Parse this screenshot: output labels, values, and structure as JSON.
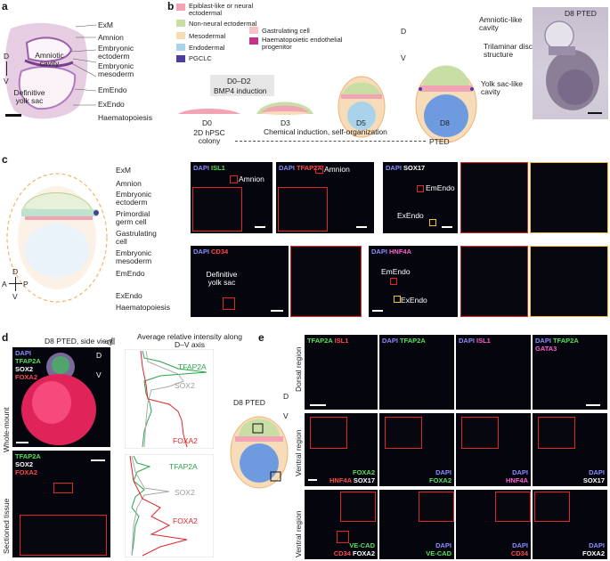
{
  "panels": {
    "a": "a",
    "b": "b",
    "c": "c",
    "d": "d",
    "e": "e"
  },
  "panel_a": {
    "labels": [
      "ExM",
      "Amnion",
      "Embryonic ectoderm",
      "Embryonic mesoderm",
      "EmEndo",
      "ExEndo",
      "Haematopoiesis"
    ],
    "amniotic": "Amniotic cavity",
    "yolk": "Definitive yolk sac",
    "d": "D",
    "v": "V"
  },
  "panel_b": {
    "legend": [
      {
        "label": "Epiblast-like or neural ectodermal",
        "color": "#f2a3b4"
      },
      {
        "label": "Non-neural ectodermal",
        "color": "#c9dea4"
      },
      {
        "label": "Mesodermal",
        "color": "#f6dcb8"
      },
      {
        "label": "Gastrulating cell",
        "color": "#f6c3c8"
      },
      {
        "label": "Endodermal",
        "color": "#a9d3ea"
      },
      {
        "label": "Haematopoietic endothelial progenitor",
        "color": "#c3328c"
      },
      {
        "label": "PGCLC",
        "color": "#4b3f9c"
      }
    ],
    "stages": [
      "D0",
      "D3",
      "D5",
      "D8"
    ],
    "colony": "2D hPSC colony",
    "induction_days": "D0–D2",
    "induction": "BMP4 induction",
    "timeline": "Chemical induction, self-organization",
    "pted": "PTED",
    "d8_title": "D8 PTED",
    "amniotic_like": "Amniotic-like cavity",
    "trilaminar": "Trilaminar disc-like structure",
    "yolk_like": "Yolk sac-like cavity",
    "d": "D",
    "v": "V"
  },
  "panel_c": {
    "labels": [
      "ExM",
      "Amnion",
      "Embryonic ectoderm",
      "Primordial germ cell",
      "Gastrulating cell",
      "Embryonic mesoderm",
      "EmEndo",
      "ExEndo",
      "Haematopoiesis"
    ],
    "axis": {
      "d": "D",
      "v": "V",
      "a": "A",
      "p": "P"
    },
    "m1": {
      "dapi": "DAPI",
      "marker": "ISL1",
      "region": "Amnion"
    },
    "m2": {
      "dapi": "DAPI",
      "marker": "TFAP2A",
      "region": "Amnion"
    },
    "m3": {
      "dapi": "DAPI",
      "marker": "SOX17",
      "emendo": "EmEndo",
      "exendo": "ExEndo"
    },
    "m4": {
      "dapi": "DAPI",
      "marker": "CD34",
      "yolk": "Definitive yolk sac"
    },
    "m5": {
      "dapi": "DAPI",
      "marker": "HNF4A",
      "emendo": "EmEndo",
      "exendo": "ExEndo"
    }
  },
  "panel_d": {
    "title": "D8 PTED, side view",
    "channels": [
      "DAPI",
      "TFAP2A",
      "SOX2",
      "FOXA2"
    ],
    "channels2": [
      "TFAP2A",
      "SOX2",
      "FOXA2"
    ],
    "whole": "Whole-mount",
    "sectioned": "Sectioned tissue",
    "profile_title": "Average relative intensity along D–V axis",
    "trace_labels": [
      "TFAP2A",
      "SOX2",
      "FOXA2"
    ],
    "d": "D",
    "v": "V"
  },
  "panel_e": {
    "schematic_title": "D8 PTED",
    "d": "D",
    "v": "V",
    "regions": [
      "Dorsal region",
      "Ventral region",
      "Ventral region"
    ],
    "row1": [
      {
        "a": "TFAP2A",
        "b": "ISL1"
      },
      {
        "a": "DAPI",
        "b": "TFAP2A"
      },
      {
        "a": "DAPI",
        "b": "ISL1"
      },
      {
        "a": "DAPI",
        "b": "TFAP2A",
        "c": "GATA3"
      }
    ],
    "row2": [
      {
        "a": "FOXA2",
        "b": "HNF4A",
        "c": "SOX17"
      },
      {
        "a": "DAPI",
        "b": "FOXA2"
      },
      {
        "a": "DAPI",
        "b": "HNF4A"
      },
      {
        "a": "DAPI",
        "b": "SOX17"
      }
    ],
    "row3": [
      {
        "a": "VE-CAD",
        "b": "CD34",
        "c": "FOXA2"
      },
      {
        "a": "DAPI",
        "b": "VE-CAD"
      },
      {
        "a": "DAPI",
        "b": "CD34"
      },
      {
        "a": "DAPI",
        "b": "FOXA2"
      }
    ]
  }
}
